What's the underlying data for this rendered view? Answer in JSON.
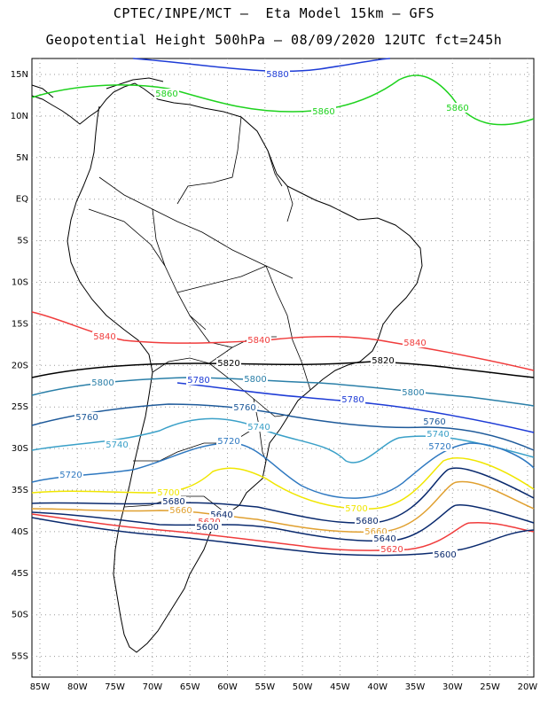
{
  "title_line1": "CPTEC/INPE/MCT –  Eta Model 15km – GFS",
  "title_line2": "Geopotential Height 500hPa – 08/09/2020 12UTC fct=245h",
  "lat_labels": [
    "15N",
    "10N",
    "5N",
    "EQ",
    "5S",
    "10S",
    "15S",
    "20S",
    "25S",
    "30S",
    "35S",
    "40S",
    "45S",
    "50S",
    "55S"
  ],
  "lon_labels": [
    "85W",
    "80W",
    "75W",
    "70W",
    "65W",
    "60W",
    "55W",
    "50W",
    "45W",
    "40W",
    "35W",
    "30W",
    "25W",
    "20W"
  ],
  "contours": [
    {
      "value": 5880,
      "label": "5880",
      "color": "#1e3cd6"
    },
    {
      "value": 5860,
      "label": "5860",
      "color": "#1ed21e"
    },
    {
      "value": 5840,
      "label": "5840",
      "color": "#f03c3c"
    },
    {
      "value": 5820,
      "label": "5820",
      "color": "#000000"
    },
    {
      "value": 5800,
      "label": "5800",
      "color": "#2a7fa8"
    },
    {
      "value": 5780,
      "label": "5780",
      "color": "#1e3cd6"
    },
    {
      "value": 5760,
      "label": "5760",
      "color": "#1e5a9a"
    },
    {
      "value": 5740,
      "label": "5740",
      "color": "#3aa0c8"
    },
    {
      "value": 5720,
      "label": "5720",
      "color": "#2e78c0"
    },
    {
      "value": 5700,
      "label": "5700",
      "color": "#f0e600"
    },
    {
      "value": 5680,
      "label": "5680",
      "color": "#0a2a6e"
    },
    {
      "value": 5660,
      "label": "5660",
      "color": "#e0a030"
    },
    {
      "value": 5640,
      "label": "5640",
      "color": "#0a2a6e"
    },
    {
      "value": 5620,
      "label": "5620",
      "color": "#f03c3c"
    },
    {
      "value": 5600,
      "label": "5600",
      "color": "#0a2a6e"
    }
  ]
}
